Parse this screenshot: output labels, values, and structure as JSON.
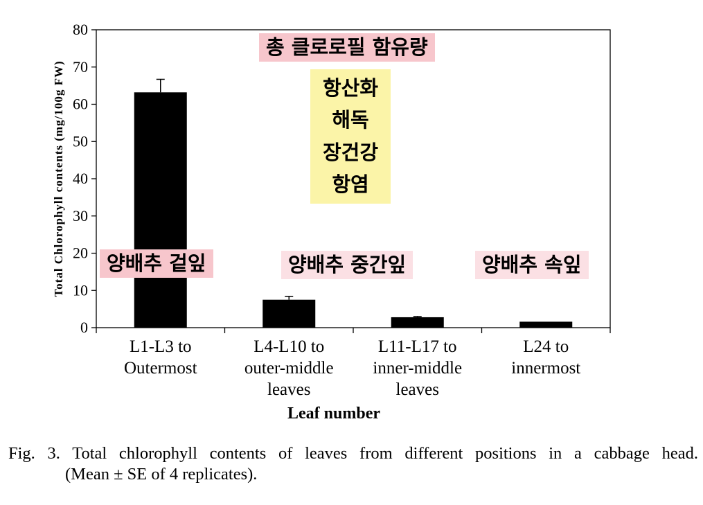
{
  "chart_data": {
    "type": "bar",
    "categories": [
      [
        "L1-L3 to",
        "Outermost"
      ],
      [
        "L4-L10 to",
        "outer-middle",
        "leaves"
      ],
      [
        "L11-L17 to",
        "inner-middle",
        "leaves"
      ],
      [
        "L24 to",
        "innermost"
      ]
    ],
    "values": [
      63.2,
      7.5,
      2.8,
      1.6
    ],
    "errors": [
      3.5,
      0.9,
      0.2,
      0.0
    ],
    "xlabel": "Leaf number",
    "ylabel": "Total Chlorophyll contents (mg/100g FW)",
    "ylim": [
      0,
      80
    ],
    "yticks": [
      0,
      10,
      20,
      30,
      40,
      50,
      60,
      70,
      80
    ],
    "grid": false,
    "bar_color": "#000000",
    "annotations": [
      {
        "id": "total",
        "text": "총 클로로필 함유량",
        "color": "#f7c6cc"
      },
      {
        "id": "health",
        "lines": [
          "항산화",
          "해독",
          "장건강",
          "항염"
        ],
        "color": "#fbf4a8"
      },
      {
        "id": "outer",
        "text": "양배추 겉잎",
        "color": "#f7c6cc"
      },
      {
        "id": "middle",
        "text": "양배추 중간잎",
        "color": "#fbe0e4"
      },
      {
        "id": "inner",
        "text": "양배추 속잎",
        "color": "#fbe0e4"
      }
    ]
  },
  "caption": {
    "line1": "Fig. 3. Total chlorophyll contents of leaves from different positions in a cabbage head.",
    "line2": "(Mean ± SE of 4 replicates)."
  }
}
